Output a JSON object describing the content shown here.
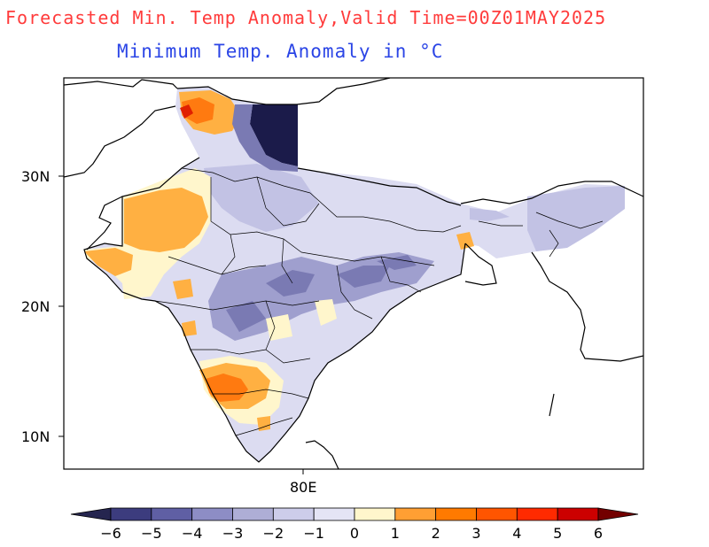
{
  "header": {
    "main_title": "Forecasted Min. Temp Anomaly,Valid Time=00Z01MAY2025",
    "subtitle": "Minimum Temp. Anomaly in °C"
  },
  "axes": {
    "lat_labels": [
      "30N",
      "20N",
      "10N"
    ],
    "lon_labels": [
      "80E"
    ]
  },
  "colorbar": {
    "labels": [
      "−6",
      "−5",
      "−4",
      "−3",
      "−2",
      "−1",
      "0",
      "1",
      "2",
      "3",
      "4",
      "5",
      "6"
    ],
    "colors": [
      "#25254f",
      "#3c3c7e",
      "#5f5fa4",
      "#8d8dc5",
      "#aeaed6",
      "#cdcdea",
      "#e4e4f5",
      "#fff6cc",
      "#ff9f33",
      "#ff7a00",
      "#ff5500",
      "#ff2a00",
      "#cc0000",
      "#730000"
    ]
  },
  "map": {
    "colors": {
      "land_base": "#dcdcf1",
      "cool1": "#c2c2e4",
      "cool2": "#9f9fce",
      "cool3": "#7a7ab3",
      "deep": "#1b1b4a",
      "warm0": "#fff6cc",
      "warm1": "#ffb042",
      "warm2": "#ff7a10",
      "warm3": "#e02000",
      "border": "#000000"
    }
  }
}
